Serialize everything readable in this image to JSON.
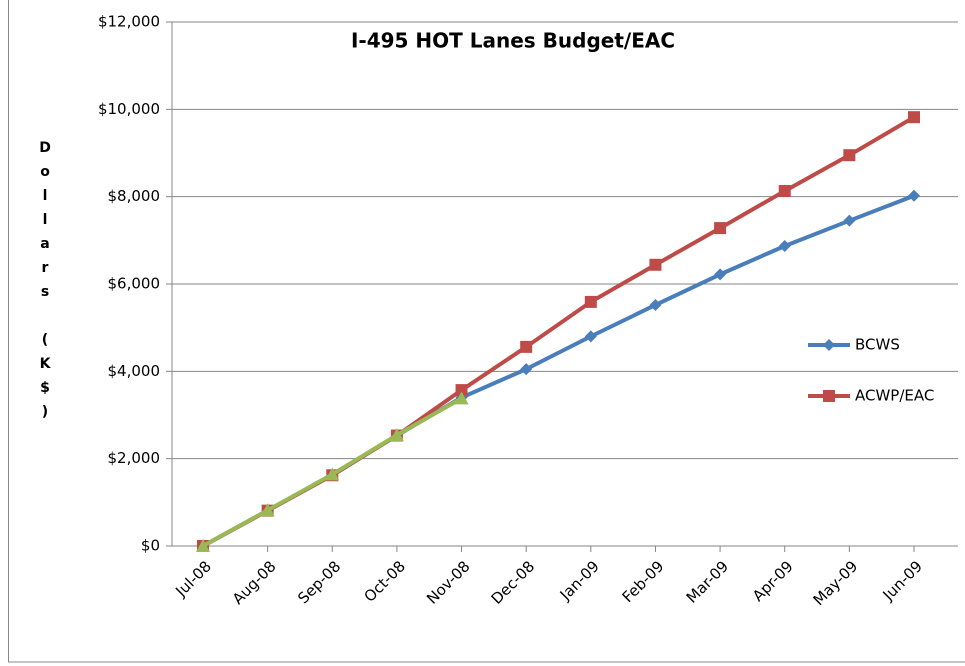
{
  "chart_data": {
    "type": "line",
    "title": "I-495 HOT Lanes Budget/EAC",
    "y_label": "Dollars (K$)",
    "categories": [
      "Jul-08",
      "Aug-08",
      "Sep-08",
      "Oct-08",
      "Nov-08",
      "Dec-08",
      "Jan-09",
      "Feb-09",
      "Mar-09",
      "Apr-09",
      "May-09",
      "Jun-09"
    ],
    "series": [
      {
        "name": "BCWS",
        "color": "#4a7ebb",
        "marker": "diamond",
        "values": [
          0,
          810,
          1620,
          2530,
          3400,
          4050,
          4800,
          5520,
          6220,
          6870,
          7450,
          8020
        ]
      },
      {
        "name": "ACWP/EAC",
        "color": "#be4b48",
        "marker": "square",
        "values": [
          0,
          810,
          1620,
          2530,
          3570,
          4560,
          5590,
          6440,
          7280,
          8130,
          8950,
          9820
        ]
      },
      {
        "color": "#98b954",
        "marker": "triangle",
        "values": [
          0,
          820,
          1640,
          2540,
          3380,
          null,
          null,
          null,
          null,
          null,
          null,
          null
        ]
      }
    ],
    "ylim": [
      0,
      12000
    ],
    "yticks": [
      {
        "value": 0,
        "label": "$0"
      },
      {
        "value": 2000,
        "label": "$2,000"
      },
      {
        "value": 4000,
        "label": "$4,000"
      },
      {
        "value": 6000,
        "label": "$6,000"
      },
      {
        "value": 8000,
        "label": "$8,000"
      },
      {
        "value": 10000,
        "label": "$10,000"
      },
      {
        "value": 12000,
        "label": "$12,000"
      }
    ],
    "grid": true,
    "legend": "right"
  }
}
